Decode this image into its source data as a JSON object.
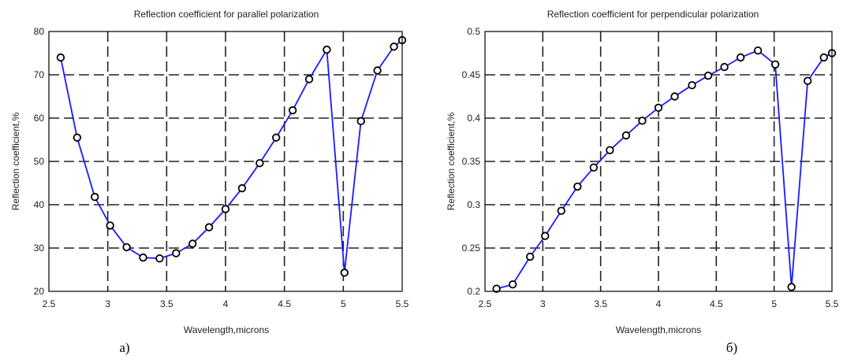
{
  "chart_data": [
    {
      "type": "line",
      "title": "Reflection coefficient for parallel polarization",
      "xlabel": "Wavelength,microns",
      "ylabel": "Reflection coefficient,%",
      "xlim": [
        2.5,
        5.5
      ],
      "ylim": [
        20,
        80
      ],
      "xticks": [
        2.5,
        3,
        3.5,
        4,
        4.5,
        5,
        5.5
      ],
      "xtick_labels": [
        "2.5",
        "3",
        "3.5",
        "4",
        "4.5",
        "5",
        "5.5"
      ],
      "yticks": [
        20,
        30,
        40,
        50,
        60,
        70,
        80
      ],
      "ytick_labels": [
        "20",
        "30",
        "40",
        "50",
        "60",
        "70",
        "80"
      ],
      "grid": true,
      "caption": "а)",
      "line_color": "#1a1aff",
      "series": [
        {
          "x": [
            2.6,
            2.74,
            2.89,
            3.02,
            3.16,
            3.3,
            3.44,
            3.58,
            3.72,
            3.86,
            4.0,
            4.14,
            4.29,
            4.43,
            4.57,
            4.71,
            4.86,
            5.01,
            5.15,
            5.29,
            5.43,
            5.5
          ],
          "y": [
            74,
            55.5,
            41.8,
            35.2,
            30.2,
            27.8,
            27.6,
            28.8,
            31.0,
            34.8,
            39.0,
            43.8,
            49.6,
            55.5,
            61.8,
            69.0,
            75.8,
            24.3,
            59.3,
            71.0,
            76.5,
            78
          ]
        }
      ]
    },
    {
      "type": "line",
      "title": "Reflection coefficient for perpendicular polarization",
      "xlabel": "Wavelength,microns",
      "ylabel": "Reflection coefficient,%",
      "xlim": [
        2.5,
        5.5
      ],
      "ylim": [
        0.2,
        0.5
      ],
      "xticks": [
        2.5,
        3,
        3.5,
        4,
        4.5,
        5,
        5.5
      ],
      "xtick_labels": [
        "2.5",
        "3",
        "3.5",
        "4",
        "4.5",
        "5",
        "5.5"
      ],
      "yticks": [
        0.2,
        0.25,
        0.3,
        0.35,
        0.4,
        0.45,
        0.5
      ],
      "ytick_labels": [
        "0.2",
        "0.25",
        "0.3",
        "0.35",
        "0.4",
        "0.45",
        "0.5"
      ],
      "grid": true,
      "caption": "б)",
      "line_color": "#1a1aff",
      "series": [
        {
          "x": [
            2.6,
            2.74,
            2.89,
            3.02,
            3.16,
            3.3,
            3.44,
            3.58,
            3.72,
            3.86,
            4.0,
            4.14,
            4.29,
            4.43,
            4.57,
            4.71,
            4.86,
            5.01,
            5.15,
            5.29,
            5.43,
            5.5
          ],
          "y": [
            0.203,
            0.208,
            0.24,
            0.264,
            0.293,
            0.321,
            0.343,
            0.363,
            0.38,
            0.397,
            0.412,
            0.425,
            0.438,
            0.449,
            0.459,
            0.47,
            0.478,
            0.462,
            0.205,
            0.443,
            0.47,
            0.475
          ]
        }
      ]
    }
  ]
}
